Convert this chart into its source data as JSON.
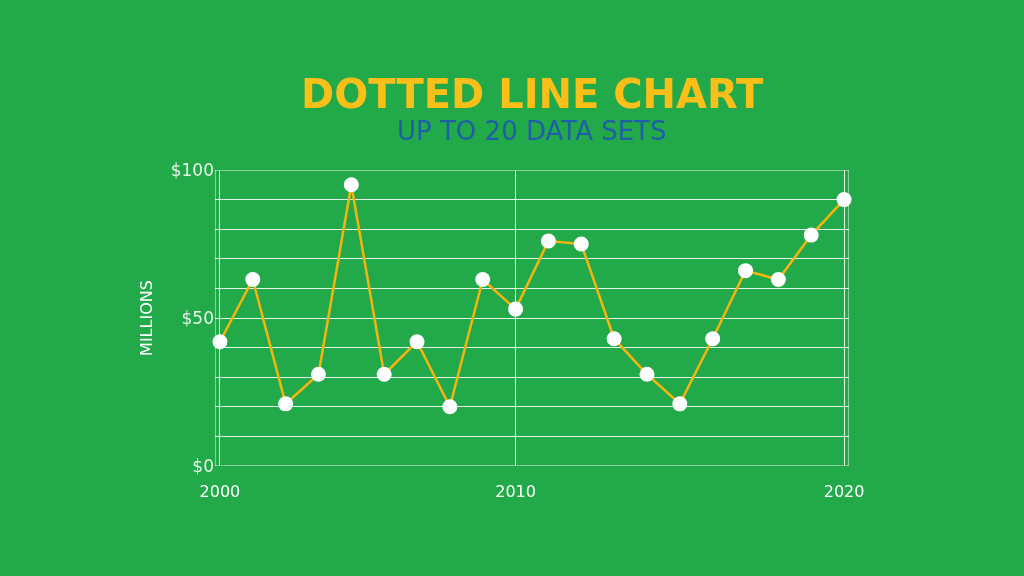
{
  "chart_data": {
    "type": "line",
    "title": "DOTTED LINE CHART",
    "subtitle": "UP TO 20 DATA SETS",
    "ylabel": "MILLIONS",
    "categories": [
      "2000",
      null,
      null,
      null,
      null,
      null,
      null,
      null,
      null,
      "2010",
      null,
      null,
      null,
      null,
      null,
      null,
      null,
      null,
      null,
      "2020"
    ],
    "series": [
      {
        "color": "#f5b50f",
        "values": [
          42,
          63,
          21,
          31,
          95,
          31,
          42,
          20,
          63,
          53,
          76,
          75,
          43,
          31,
          21,
          43,
          66,
          63,
          78,
          90
        ]
      }
    ],
    "ylim": [
      0,
      100
    ],
    "yticks": [
      {
        "value": 0,
        "label": "$0"
      },
      {
        "value": 10,
        "label": null
      },
      {
        "value": 20,
        "label": null
      },
      {
        "value": 30,
        "label": null
      },
      {
        "value": 40,
        "label": null
      },
      {
        "value": 50,
        "label": "$50"
      },
      {
        "value": 60,
        "label": null
      },
      {
        "value": 70,
        "label": null
      },
      {
        "value": 80,
        "label": null
      },
      {
        "value": 90,
        "label": null
      },
      {
        "value": 100,
        "label": "$100"
      }
    ],
    "grid": true,
    "marker": "circle",
    "line_style": "solid",
    "legend": false
  }
}
